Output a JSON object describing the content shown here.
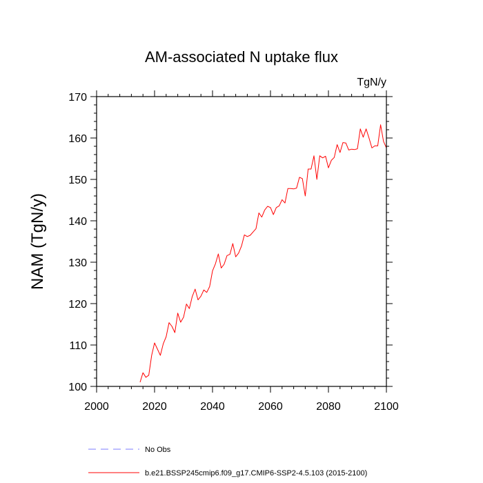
{
  "chart_data": {
    "type": "line",
    "title": "AM-associated N uptake flux",
    "units": "TgN/y",
    "xlabel": "",
    "ylabel": "NAM  (TgN/y)",
    "xlim": [
      2000,
      2100
    ],
    "ylim": [
      100,
      170
    ],
    "xticks": [
      2000,
      2020,
      2040,
      2060,
      2080,
      2100
    ],
    "yticks": [
      100,
      110,
      120,
      130,
      140,
      150,
      160,
      170
    ],
    "grid": false,
    "legend_placement": "bottom-left, below plot",
    "legend": [
      {
        "label": "No Obs",
        "style": "dashed",
        "color": "#7b7bff"
      },
      {
        "label": "b.e21.BSSP245cmip6.f09_g17.CMIP6-SSP2-4.5.103 (2015-2100)",
        "style": "solid",
        "color": "#ff0000"
      }
    ],
    "series": [
      {
        "name": "b.e21.BSSP245cmip6.f09_g17.CMIP6-SSP2-4.5.103 (2015-2100)",
        "color": "#ff0000",
        "x": [
          2015,
          2016,
          2017,
          2018,
          2019,
          2020,
          2021,
          2022,
          2023,
          2024,
          2025,
          2026,
          2027,
          2028,
          2029,
          2030,
          2031,
          2032,
          2033,
          2034,
          2035,
          2036,
          2037,
          2038,
          2039,
          2040,
          2041,
          2042,
          2043,
          2044,
          2045,
          2046,
          2047,
          2048,
          2049,
          2050,
          2051,
          2052,
          2053,
          2054,
          2055,
          2056,
          2057,
          2058,
          2059,
          2060,
          2061,
          2062,
          2063,
          2064,
          2065,
          2066,
          2067,
          2068,
          2069,
          2070,
          2071,
          2072,
          2073,
          2074,
          2075,
          2076,
          2077,
          2078,
          2079,
          2080,
          2081,
          2082,
          2083,
          2084,
          2085,
          2086,
          2087,
          2088,
          2089,
          2090,
          2091,
          2092,
          2093,
          2094,
          2095,
          2096,
          2097,
          2098,
          2099,
          2100
        ],
        "y": [
          101.0,
          103.3,
          102.2,
          102.7,
          107.5,
          110.5,
          109.0,
          107.5,
          110.3,
          112.0,
          115.4,
          114.5,
          113.0,
          117.7,
          115.5,
          116.7,
          119.9,
          118.8,
          121.7,
          123.5,
          120.9,
          121.8,
          123.3,
          122.7,
          124.1,
          127.9,
          129.6,
          132.0,
          128.6,
          129.5,
          131.6,
          131.9,
          134.5,
          131.3,
          132.2,
          133.9,
          136.6,
          136.2,
          136.5,
          137.3,
          138.1,
          141.9,
          140.9,
          142.6,
          143.5,
          143.2,
          141.5,
          143.2,
          143.6,
          145.1,
          144.3,
          147.8,
          147.8,
          147.7,
          147.9,
          150.5,
          150.2,
          146.0,
          152.5,
          152.5,
          155.7,
          150.0,
          155.7,
          155.2,
          155.6,
          152.8,
          154.6,
          155.3,
          158.4,
          156.5,
          158.9,
          158.8,
          157.1,
          157.3,
          157.2,
          157.4,
          162.2,
          160.2,
          162.2,
          160.0,
          157.6,
          158.1,
          158.1,
          163.2,
          159.2,
          157.6
        ]
      }
    ]
  }
}
